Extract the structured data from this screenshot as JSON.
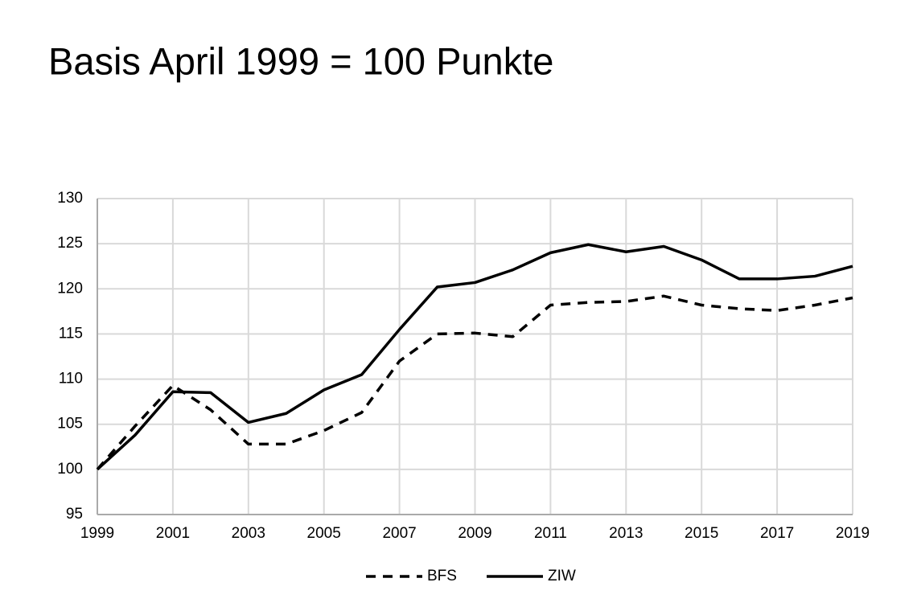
{
  "chart_data": {
    "type": "line",
    "title": "Basis April 1999 = 100 Punkte",
    "x": [
      1999,
      2000,
      2001,
      2002,
      2003,
      2004,
      2005,
      2006,
      2007,
      2008,
      2009,
      2010,
      2011,
      2012,
      2013,
      2014,
      2015,
      2016,
      2017,
      2018,
      2019
    ],
    "series": [
      {
        "name": "BFS",
        "color": "#000000",
        "dashed": true,
        "values": [
          100,
          104.8,
          109.3,
          106.6,
          102.8,
          102.8,
          104.3,
          106.3,
          112.0,
          115.0,
          115.1,
          114.7,
          118.2,
          118.5,
          118.6,
          119.2,
          118.2,
          117.8,
          117.6,
          118.2,
          119.0
        ]
      },
      {
        "name": "ZIW",
        "color": "#000000",
        "dashed": false,
        "values": [
          100,
          103.8,
          108.6,
          108.5,
          105.2,
          106.2,
          108.8,
          110.5,
          115.5,
          120.2,
          120.7,
          122.1,
          124.0,
          124.9,
          124.1,
          124.7,
          123.2,
          121.1,
          121.1,
          121.4,
          122.5
        ]
      }
    ],
    "xlim": [
      1999,
      2019
    ],
    "xticks": [
      1999,
      2001,
      2003,
      2005,
      2007,
      2009,
      2011,
      2013,
      2015,
      2017,
      2019
    ],
    "ylim": [
      95,
      130
    ],
    "yticks": [
      95,
      100,
      105,
      110,
      115,
      120,
      125,
      130
    ],
    "grid": true,
    "legend": "bottom"
  }
}
